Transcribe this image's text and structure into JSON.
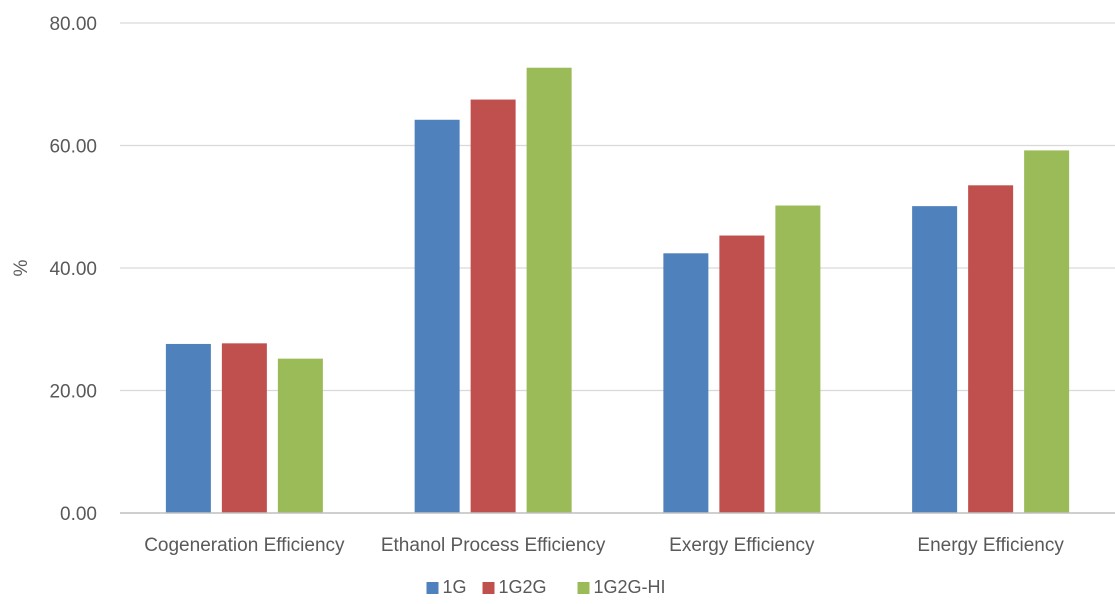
{
  "chart_data": {
    "type": "bar",
    "title": "",
    "xlabel": "",
    "ylabel": "%",
    "ylim": [
      0,
      80
    ],
    "yticks": [
      "0.00",
      "20.00",
      "40.00",
      "60.00",
      "80.00"
    ],
    "ytick_values": [
      0,
      20,
      40,
      60,
      80
    ],
    "grid": true,
    "legend_position": "bottom",
    "categories": [
      "Cogeneration Efficiency",
      "Ethanol Process Efficiency",
      "Exergy Efficiency",
      "Energy Efficiency"
    ],
    "series": [
      {
        "name": "1G",
        "color": "#4f81bd",
        "values": [
          27.6,
          64.2,
          42.4,
          50.1
        ]
      },
      {
        "name": "1G2G",
        "color": "#c0504d",
        "values": [
          27.7,
          67.5,
          45.3,
          53.5
        ]
      },
      {
        "name": "1G2G-HI",
        "color": "#9bbb59",
        "values": [
          25.2,
          72.7,
          50.2,
          59.2
        ]
      }
    ]
  }
}
